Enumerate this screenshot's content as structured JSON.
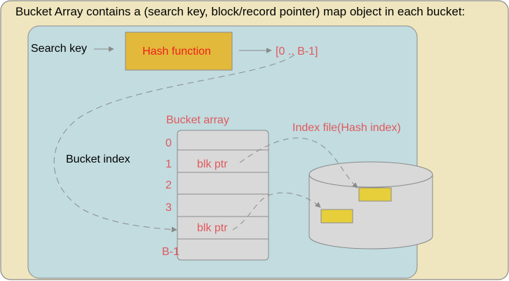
{
  "title": "Bucket Array contains a (search key, block/record pointer) map object in each bucket:",
  "search_key_label": "Search key",
  "hash_function_label": "Hash function",
  "range_label": "[0 .. B-1]",
  "bucket_index_label": "Bucket index",
  "bucket_array_label": "Bucket array",
  "index_file_label": "Index file(Hash index)",
  "rows": [
    {
      "index": "0",
      "content": ""
    },
    {
      "index": "1",
      "content": "blk ptr"
    },
    {
      "index": "2",
      "content": ""
    },
    {
      "index": "3",
      "content": ""
    },
    {
      "index": "",
      "content": "blk ptr"
    },
    {
      "index": "B-1",
      "content": ""
    }
  ],
  "colors": {
    "outer_bg": "#efe6bf",
    "inner_bg": "#c2dce0",
    "hash_box": "#e2b93b",
    "label_red": "#e0595c",
    "hash_text": "#f0201a",
    "record": "#e6cf3a",
    "cylinder": "#d9d9d9",
    "arrow": "#888888"
  }
}
